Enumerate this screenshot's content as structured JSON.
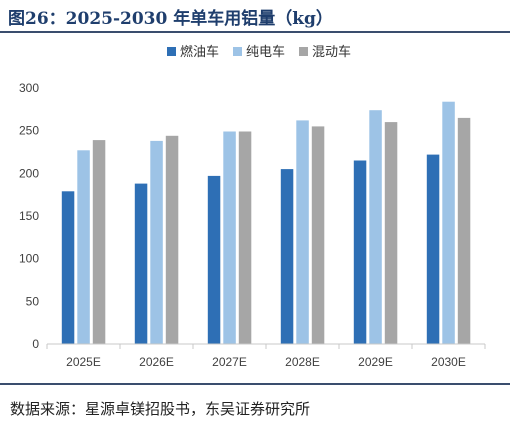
{
  "figure_title": "图26：2025-2030 年单车用铝量（kg）",
  "source": "数据来源：星源卓镁招股书，东吴证券研究所",
  "colors": {
    "title": "#1f3e6d",
    "series": [
      "#2e6fb5",
      "#9dc3e6",
      "#a6a6a6"
    ],
    "axis": "#c8c8c8",
    "tick_text": "#404040"
  },
  "chart_data": {
    "type": "bar",
    "title": "2025-2030 年单车用铝量（kg）",
    "categories": [
      "2025E",
      "2026E",
      "2027E",
      "2028E",
      "2029E",
      "2030E"
    ],
    "series": [
      {
        "name": "燃油车",
        "values": [
          179,
          188,
          197,
          205,
          215,
          222
        ]
      },
      {
        "name": "纯电车",
        "values": [
          227,
          238,
          249,
          262,
          274,
          284
        ]
      },
      {
        "name": "混动车",
        "values": [
          239,
          244,
          249,
          255,
          260,
          265
        ]
      }
    ],
    "ylim": [
      0,
      300
    ],
    "yticks": [
      0,
      50,
      100,
      150,
      200,
      250,
      300
    ],
    "grid": false,
    "legend_position": "top-center",
    "xlabel": "",
    "ylabel": ""
  }
}
